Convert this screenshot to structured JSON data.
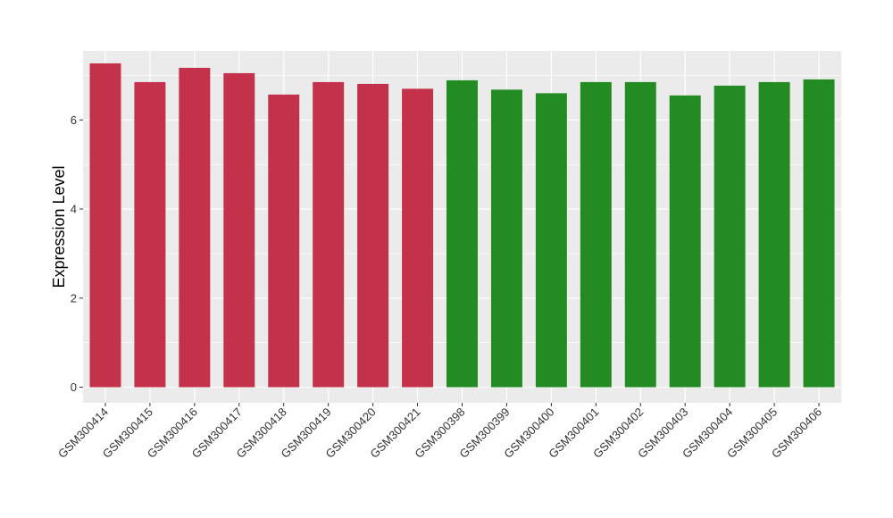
{
  "chart_data": {
    "type": "bar",
    "title": "",
    "xlabel": "",
    "ylabel": "Expression Level",
    "ylim": [
      -0.35,
      7.55
    ],
    "yticks": [
      0,
      2,
      4,
      6
    ],
    "grid": true,
    "categories": [
      "GSM300414",
      "GSM300415",
      "GSM300416",
      "GSM300417",
      "GSM300418",
      "GSM300419",
      "GSM300420",
      "GSM300421",
      "GSM300398",
      "GSM300399",
      "GSM300400",
      "GSM300401",
      "GSM300402",
      "GSM300403",
      "GSM300404",
      "GSM300405",
      "GSM300406"
    ],
    "values": [
      7.27,
      6.85,
      7.17,
      7.05,
      6.57,
      6.85,
      6.81,
      6.7,
      6.89,
      6.68,
      6.6,
      6.85,
      6.85,
      6.55,
      6.77,
      6.85,
      6.91
    ],
    "groups": [
      0,
      0,
      0,
      0,
      0,
      0,
      0,
      0,
      1,
      1,
      1,
      1,
      1,
      1,
      1,
      1,
      1
    ],
    "group_colors": [
      "#C3314A",
      "#228B22"
    ],
    "panel_color": "#EBEBEB",
    "grid_color": "#FFFFFF"
  }
}
